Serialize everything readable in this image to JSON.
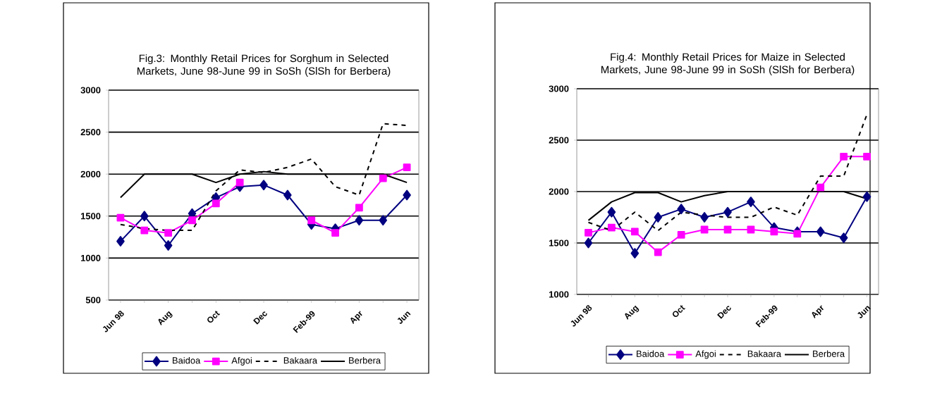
{
  "chart_data": [
    {
      "type": "line",
      "title": "Fig.3: Monthly Retail Prices for Sorghum in Selected Markets, June 98-June 99 in SoSh (SlSh for Berbera)",
      "categories": [
        "Jun 98",
        null,
        "Aug",
        null,
        "Oct",
        null,
        "Dec",
        null,
        "Feb-99",
        null,
        "Apr",
        null,
        "Jun"
      ],
      "ylim": [
        500,
        3000
      ],
      "yticks": [
        500,
        1000,
        1500,
        2000,
        2500,
        3000
      ],
      "grid": "y",
      "legend": "bottom",
      "series": [
        {
          "name": "Baidoa",
          "color": "#000080",
          "marker": "diamond",
          "line_style": "solid",
          "values": [
            1200,
            1500,
            1150,
            1530,
            1720,
            1850,
            1870,
            1750,
            1400,
            1350,
            1450,
            1450,
            1750
          ]
        },
        {
          "name": "Afgoi",
          "color": "#ff00ff",
          "marker": "square",
          "line_style": "solid",
          "values": [
            1480,
            1330,
            1300,
            1450,
            1650,
            1900,
            null,
            null,
            1450,
            1300,
            1600,
            1950,
            2080
          ]
        },
        {
          "name": "Bakaara",
          "color": "#000000",
          "marker": "none",
          "line_style": "dashed",
          "values": [
            1400,
            1350,
            1330,
            1330,
            1800,
            2050,
            2020,
            2080,
            2180,
            1850,
            1750,
            2600,
            2580
          ]
        },
        {
          "name": "Berbera",
          "color": "#000000",
          "marker": "none",
          "line_style": "solid",
          "values": [
            1720,
            2000,
            2000,
            2000,
            1900,
            2000,
            2030,
            2000,
            2000,
            2000,
            2000,
            2000,
            1900
          ]
        }
      ]
    },
    {
      "type": "line",
      "title": "Fig.4: Monthly Retail Prices for Maize in Selected Markets, June 98-June 99 in SoSh (SlSh for Berbera)",
      "categories": [
        "Jun 98",
        null,
        "Aug",
        null,
        "Oct",
        null,
        "Dec",
        null,
        "Feb-99",
        null,
        "Apr",
        null,
        "Jun"
      ],
      "ylim": [
        1000,
        3000
      ],
      "yticks": [
        1000,
        1500,
        2000,
        2500,
        3000
      ],
      "grid": "y",
      "legend": "bottom",
      "series": [
        {
          "name": "Baidoa",
          "color": "#000080",
          "marker": "diamond",
          "line_style": "solid",
          "values": [
            1500,
            1800,
            1400,
            1750,
            1830,
            1750,
            1800,
            1900,
            1650,
            1610,
            1610,
            1550,
            1950
          ]
        },
        {
          "name": "Afgoi",
          "color": "#ff00ff",
          "marker": "square",
          "line_style": "solid",
          "values": [
            1600,
            1650,
            1610,
            1410,
            1580,
            1630,
            1630,
            1630,
            1610,
            1590,
            2040,
            2340,
            2340
          ]
        },
        {
          "name": "Bakaara",
          "color": "#000000",
          "marker": "none",
          "line_style": "dashed",
          "values": [
            1700,
            1620,
            1800,
            1620,
            1800,
            1770,
            1750,
            1750,
            1850,
            1770,
            2150,
            2150,
            2750
          ]
        },
        {
          "name": "Berbera",
          "color": "#000000",
          "marker": "none",
          "line_style": "solid",
          "values": [
            1720,
            1900,
            1990,
            1990,
            1900,
            1960,
            2000,
            2000,
            2000,
            2000,
            2000,
            2000,
            1930
          ]
        }
      ]
    }
  ]
}
